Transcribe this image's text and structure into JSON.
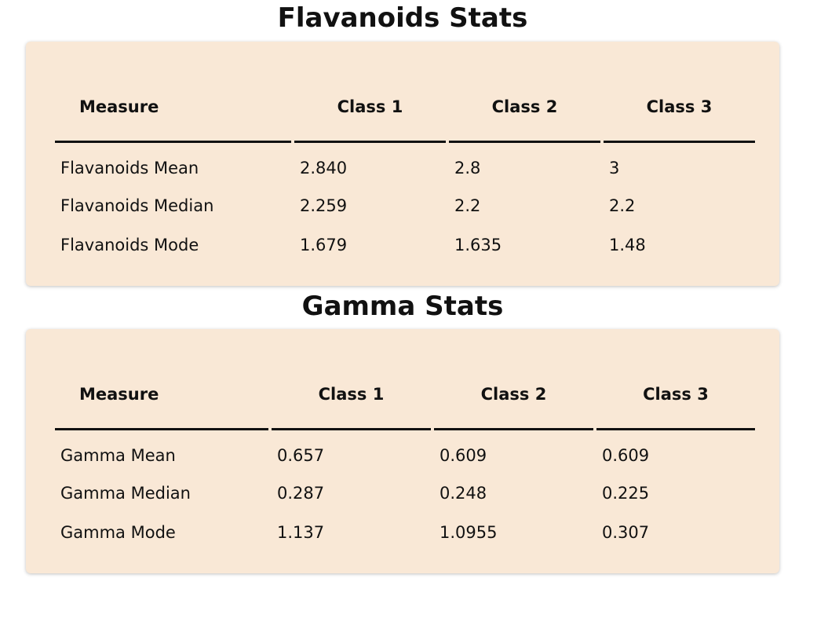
{
  "flavanoids": {
    "title": "Flavanoids Stats",
    "headers": [
      "Measure",
      "Class 1",
      "Class 2",
      "Class 3"
    ],
    "rows": [
      [
        "Flavanoids Mean",
        "2.840",
        "2.8",
        "3"
      ],
      [
        "Flavanoids Median",
        "2.259",
        "2.2",
        "2.2"
      ],
      [
        "Flavanoids Mode",
        "1.679",
        "1.635",
        "1.48"
      ]
    ]
  },
  "gamma": {
    "title": "Gamma Stats",
    "headers": [
      "Measure",
      "Class 1",
      "Class 2",
      "Class 3"
    ],
    "rows": [
      [
        "Gamma Mean",
        "0.657",
        "0.609",
        "0.609"
      ],
      [
        "Gamma Median",
        "0.287",
        "0.248",
        "0.225"
      ],
      [
        "Gamma Mode",
        "1.137",
        "1.0955",
        "0.307"
      ]
    ]
  },
  "colors": {
    "card_background": "#f9e8d6",
    "text": "#111111"
  }
}
